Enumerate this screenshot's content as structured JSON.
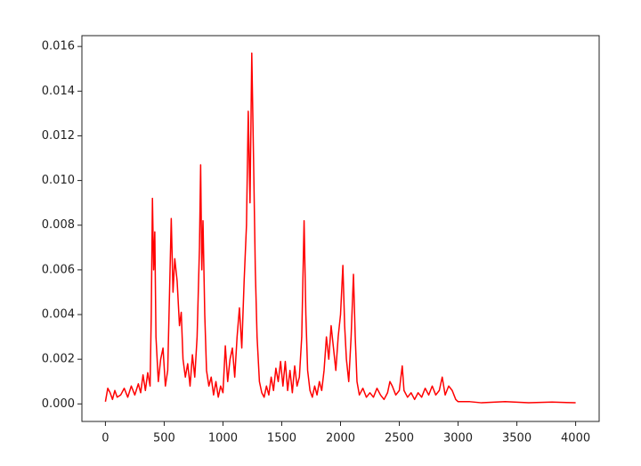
{
  "chart_data": {
    "type": "line",
    "x": [
      0,
      20,
      40,
      60,
      80,
      100,
      130,
      160,
      190,
      220,
      250,
      280,
      300,
      320,
      340,
      360,
      380,
      390,
      400,
      410,
      420,
      430,
      450,
      470,
      490,
      510,
      530,
      550,
      560,
      575,
      590,
      610,
      630,
      645,
      660,
      680,
      700,
      720,
      740,
      760,
      780,
      800,
      810,
      820,
      830,
      845,
      860,
      880,
      900,
      920,
      940,
      960,
      980,
      1000,
      1020,
      1040,
      1060,
      1080,
      1100,
      1120,
      1140,
      1160,
      1180,
      1200,
      1215,
      1230,
      1245,
      1260,
      1275,
      1290,
      1310,
      1330,
      1350,
      1370,
      1390,
      1410,
      1430,
      1450,
      1470,
      1490,
      1510,
      1530,
      1550,
      1570,
      1590,
      1610,
      1630,
      1650,
      1670,
      1690,
      1705,
      1720,
      1740,
      1760,
      1780,
      1800,
      1820,
      1840,
      1860,
      1880,
      1900,
      1920,
      1940,
      1960,
      1980,
      2000,
      2020,
      2035,
      2050,
      2070,
      2090,
      2110,
      2125,
      2140,
      2160,
      2190,
      2220,
      2250,
      2280,
      2310,
      2340,
      2370,
      2400,
      2420,
      2440,
      2470,
      2500,
      2525,
      2540,
      2570,
      2600,
      2630,
      2660,
      2690,
      2720,
      2750,
      2780,
      2810,
      2840,
      2865,
      2890,
      2920,
      2950,
      2980,
      3000,
      3100,
      3200,
      3400,
      3600,
      3800,
      4000
    ],
    "series": [
      {
        "color": "#ff0000",
        "values": [
          0.0001,
          0.0007,
          0.0005,
          0.0002,
          0.0006,
          0.0003,
          0.0004,
          0.0007,
          0.0003,
          0.0008,
          0.0004,
          0.0009,
          0.0005,
          0.0013,
          0.0006,
          0.0014,
          0.0008,
          0.004,
          0.0092,
          0.006,
          0.0077,
          0.003,
          0.001,
          0.002,
          0.0025,
          0.0008,
          0.0015,
          0.006,
          0.0083,
          0.005,
          0.0065,
          0.0055,
          0.0035,
          0.0041,
          0.002,
          0.0012,
          0.0018,
          0.0008,
          0.0022,
          0.0012,
          0.003,
          0.007,
          0.0107,
          0.006,
          0.0082,
          0.004,
          0.0015,
          0.0008,
          0.0012,
          0.0004,
          0.001,
          0.0003,
          0.0008,
          0.0005,
          0.0026,
          0.001,
          0.002,
          0.0025,
          0.0012,
          0.003,
          0.0043,
          0.0025,
          0.0055,
          0.008,
          0.0131,
          0.009,
          0.0157,
          0.011,
          0.006,
          0.003,
          0.001,
          0.0005,
          0.0003,
          0.0008,
          0.0004,
          0.0012,
          0.0006,
          0.0016,
          0.001,
          0.0019,
          0.0008,
          0.0019,
          0.0006,
          0.0015,
          0.0005,
          0.0017,
          0.0008,
          0.0012,
          0.003,
          0.0082,
          0.004,
          0.0015,
          0.0006,
          0.0003,
          0.0008,
          0.0004,
          0.001,
          0.0006,
          0.0015,
          0.003,
          0.002,
          0.0035,
          0.0025,
          0.0015,
          0.003,
          0.004,
          0.0062,
          0.0035,
          0.002,
          0.001,
          0.003,
          0.0058,
          0.003,
          0.001,
          0.0004,
          0.0007,
          0.0003,
          0.0005,
          0.0003,
          0.0007,
          0.0004,
          0.0002,
          0.0005,
          0.001,
          0.0008,
          0.0004,
          0.0006,
          0.0017,
          0.0006,
          0.0003,
          0.0005,
          0.0002,
          0.0005,
          0.0003,
          0.0007,
          0.0004,
          0.0008,
          0.0004,
          0.0006,
          0.0012,
          0.0004,
          0.0008,
          0.0006,
          0.0002,
          0.0001,
          0.0001,
          5e-05,
          0.0001,
          5e-05,
          8e-05,
          5e-05
        ]
      }
    ],
    "xlim": [
      -200,
      4200
    ],
    "xticks": [
      0,
      500,
      1000,
      1500,
      2000,
      2500,
      3000,
      3500,
      4000
    ],
    "ylim": [
      -0.000785,
      0.016485
    ],
    "yticks": [
      {
        "value": 0,
        "label": "0.000"
      },
      {
        "value": 0.002,
        "label": "0.002"
      },
      {
        "value": 0.004,
        "label": "0.004"
      },
      {
        "value": 0.006,
        "label": "0.006"
      },
      {
        "value": 0.008,
        "label": "0.008"
      },
      {
        "value": 0.01,
        "label": "0.010"
      },
      {
        "value": 0.012,
        "label": "0.012"
      },
      {
        "value": 0.014,
        "label": "0.014"
      },
      {
        "value": 0.016,
        "label": "0.016"
      }
    ]
  }
}
